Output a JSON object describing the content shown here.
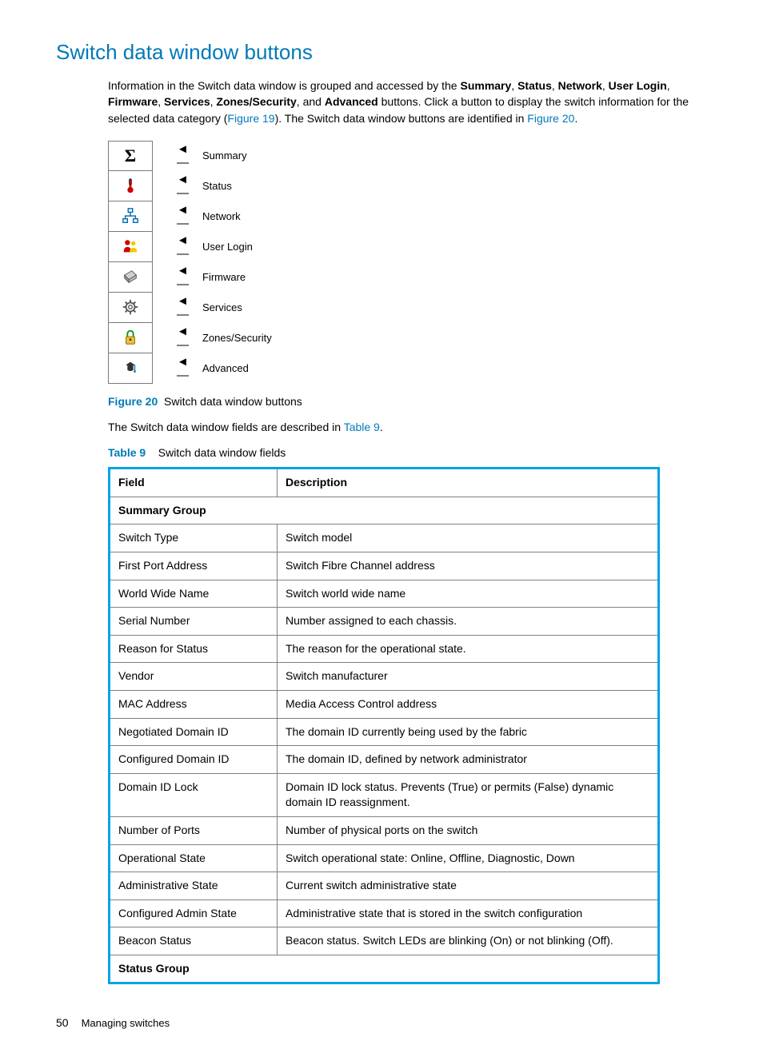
{
  "heading": {
    "text": "Switch data window buttons",
    "color": "#007ab8"
  },
  "intro": {
    "pre": "Information in the Switch data window is grouped and accessed by the ",
    "bold_terms": [
      "Summary",
      "Status",
      "Network",
      "User Login",
      "Firmware",
      "Services",
      "Zones/Security",
      "Advanced"
    ],
    "mid": " buttons. Click a button to display the switch information for the selected data category (",
    "figref1": "Figure 19",
    "post_ref1": "). The Switch data window buttons are identified in ",
    "figref2": "Figure 20",
    "end": "."
  },
  "buttons": [
    {
      "icon": "sigma",
      "label": "Summary"
    },
    {
      "icon": "thermometer",
      "label": "Status"
    },
    {
      "icon": "network",
      "label": "Network"
    },
    {
      "icon": "users",
      "label": "User Login"
    },
    {
      "icon": "chip",
      "label": "Firmware"
    },
    {
      "icon": "gear",
      "label": "Services"
    },
    {
      "icon": "lock",
      "label": "Zones/Security"
    },
    {
      "icon": "hat",
      "label": "Advanced"
    }
  ],
  "figure_caption": {
    "num": "Figure 20",
    "text": "Switch data window buttons"
  },
  "body_text": {
    "pre": "The Switch data window fields are described in ",
    "link": "Table 9",
    "post": "."
  },
  "table_caption": {
    "num": "Table 9",
    "text": "Switch data window fields"
  },
  "table": {
    "headers": [
      "Field",
      "Description"
    ],
    "groups": [
      {
        "name": "Summary Group",
        "rows": [
          [
            "Switch Type",
            "Switch model"
          ],
          [
            "First Port Address",
            "Switch Fibre Channel address"
          ],
          [
            "World Wide Name",
            "Switch world wide name"
          ],
          [
            "Serial Number",
            "Number assigned to each chassis."
          ],
          [
            "Reason for Status",
            "The reason for the operational state."
          ],
          [
            "Vendor",
            "Switch manufacturer"
          ],
          [
            "MAC Address",
            "Media Access Control address"
          ],
          [
            "Negotiated Domain ID",
            "The domain ID currently being used by the fabric"
          ],
          [
            "Configured Domain ID",
            "The domain ID, defined by network administrator"
          ],
          [
            "Domain ID Lock",
            "Domain ID lock status. Prevents (True) or permits (False) dynamic domain ID reassignment."
          ],
          [
            "Number of Ports",
            "Number of physical ports on the switch"
          ],
          [
            "Operational State",
            "Switch operational state: Online, Offline, Diagnostic, Down"
          ],
          [
            "Administrative State",
            "Current switch administrative state"
          ],
          [
            "Configured Admin State",
            "Administrative state that is stored in the switch configuration"
          ],
          [
            "Beacon Status",
            "Beacon status. Switch LEDs are blinking (On) or not blinking (Off)."
          ]
        ]
      },
      {
        "name": "Status Group",
        "rows": []
      }
    ]
  },
  "footer": {
    "page": "50",
    "section": "Managing switches"
  },
  "colors": {
    "link": "#007ab8",
    "table_border": "#00a4e4"
  }
}
